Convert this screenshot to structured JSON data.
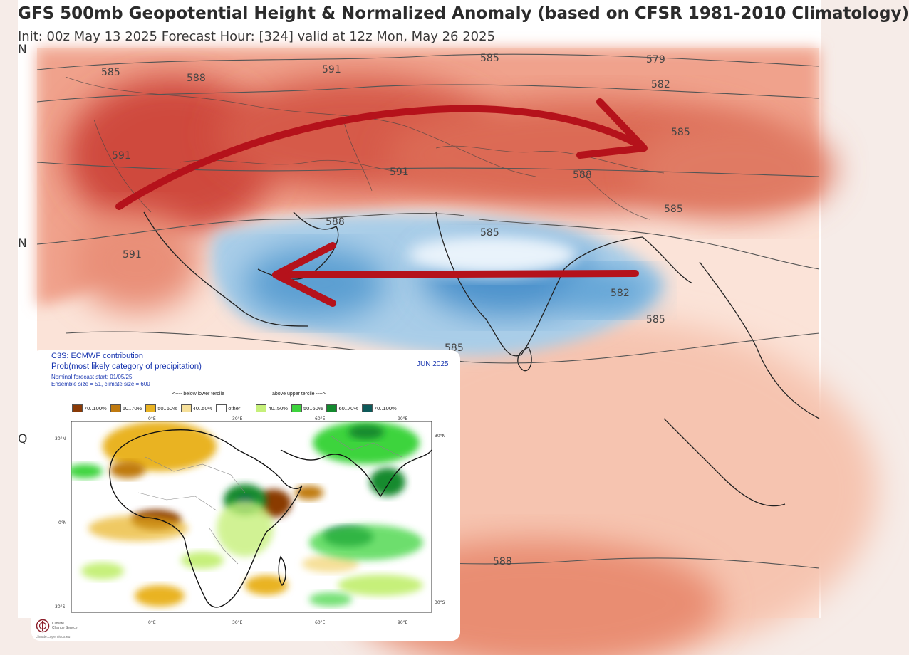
{
  "main_map": {
    "title": "GFS 500mb Geopotential Height & Normalized Anomaly (based on CFSR 1981-2010 Climatology)",
    "subtitle": "Init: 00z May 13 2025   Forecast Hour: [324]   valid at 12z Mon, May 26 2025",
    "lat_labels": [
      "N",
      "N",
      "Q"
    ],
    "contour_labels": [
      "585",
      "588",
      "591",
      "591",
      "585",
      "579",
      "582",
      "585",
      "591",
      "588",
      "585",
      "591",
      "588",
      "585",
      "582",
      "585",
      "585",
      "588"
    ],
    "colors": {
      "warm_anomaly": "#d9534a",
      "cool_anomaly": "#3b86c6",
      "arrows": "#b5121b"
    }
  },
  "inset": {
    "title": "C3S: ECMWF contribution",
    "subtitle": "Prob(most likely category of precipitation)",
    "forecast_start": "Nominal forecast start: 01/05/25",
    "ensemble_size": "Ensemble size = 51, climate size = 600",
    "month": "JUN 2025",
    "below_caption": "<---- below lower tercile",
    "above_caption": "above upper tercile ---->",
    "legend": [
      {
        "label": "70..100%",
        "color": "#8a3a06"
      },
      {
        "label": "60..70%",
        "color": "#c07a10"
      },
      {
        "label": "50..60%",
        "color": "#e9b323"
      },
      {
        "label": "40..50%",
        "color": "#f6e09a"
      },
      {
        "label": "other",
        "color": "#ffffff"
      },
      {
        "label": "40..50%",
        "color": "#c6f07a"
      },
      {
        "label": "50..60%",
        "color": "#3dd43d"
      },
      {
        "label": "60..70%",
        "color": "#138a2e"
      },
      {
        "label": "70..100%",
        "color": "#0e5a5a"
      }
    ],
    "x_ticks_top": [
      "0°E",
      "30°E",
      "60°E",
      "90°E"
    ],
    "x_ticks_bottom": [
      "0°E",
      "30°E",
      "60°E",
      "90°E"
    ],
    "y_ticks_left": [
      "30°N",
      "0°N",
      "30°S"
    ],
    "y_ticks_right": [
      "30°N",
      "30°S"
    ],
    "logo_text": [
      "Climate",
      "Change Service"
    ],
    "logo_url": "climate.copernicus.eu"
  }
}
